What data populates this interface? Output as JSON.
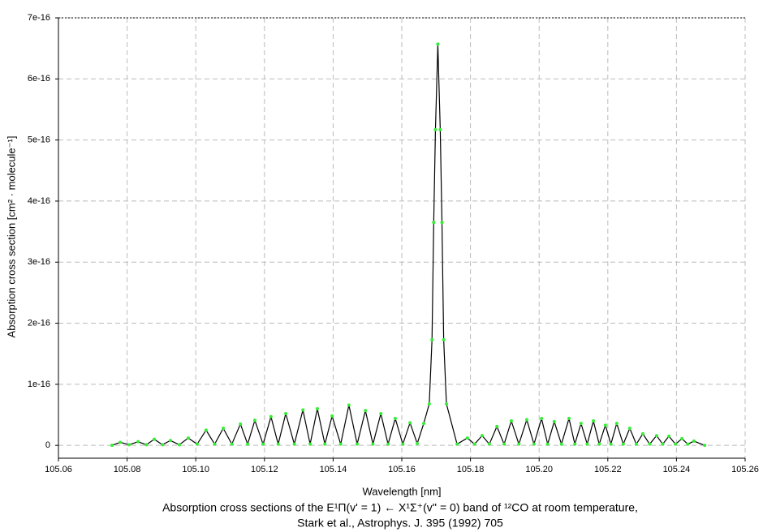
{
  "chart_data": {
    "type": "line",
    "title": "Absorption cross sections of the E¹Π(v' = 1) ← X¹Σ⁺(v'' = 0) band of ¹²CO at room temperature,",
    "subtitle": "Stark et al., Astrophys. J. 395 (1992) 705",
    "x_label": "Wavelength [nm]",
    "y_label": "Absorption cross section [cm² · molecule⁻¹]",
    "xlim": [
      105.06,
      105.26
    ],
    "ylim": [
      -2.1e-17,
      7e-16
    ],
    "xticks": [
      105.06,
      105.08,
      {
        "value": 105.1,
        "label": "105.10"
      },
      105.12,
      105.14,
      105.16,
      105.18,
      {
        "value": 105.2,
        "label": "105.20"
      },
      105.22,
      105.24,
      105.26
    ],
    "yticks": [
      0,
      {
        "value": 1e-16,
        "label": "1e-16"
      },
      {
        "value": 2e-16,
        "label": "2e-16"
      },
      {
        "value": 3e-16,
        "label": "3e-16"
      },
      {
        "value": 4e-16,
        "label": "4e-16"
      },
      {
        "value": 5e-16,
        "label": "5e-16"
      },
      {
        "value": 6e-16,
        "label": "6e-16"
      },
      {
        "value": 7e-16,
        "label": "7e-16"
      }
    ],
    "grid": true,
    "line_color": "#000000",
    "marker_color": "#33ee33",
    "x": [
      105.0756,
      105.078,
      105.0806,
      105.0832,
      105.0856,
      105.0879,
      105.0903,
      105.0926,
      105.0952,
      105.0978,
      105.1004,
      105.103,
      105.1055,
      105.108,
      105.1105,
      105.113,
      105.1151,
      105.1172,
      105.1196,
      105.1219,
      105.124,
      105.1262,
      105.1287,
      105.1312,
      105.1333,
      105.1354,
      105.1376,
      105.1397,
      105.1422,
      105.1446,
      105.147,
      105.1494,
      105.1516,
      105.1539,
      105.156,
      105.1581,
      105.1603,
      105.1624,
      105.1645,
      105.1664,
      105.168,
      105.1688,
      105.1693,
      105.1698,
      105.1705,
      105.1712,
      105.1717,
      105.1722,
      105.173,
      105.1761,
      105.1791,
      105.1812,
      105.1834,
      105.1855,
      105.1877,
      105.1898,
      105.1919,
      105.1941,
      105.1964,
      105.1985,
      105.2007,
      105.2025,
      105.2044,
      105.2065,
      105.2087,
      105.2104,
      105.2122,
      105.214,
      105.2158,
      105.2175,
      105.2193,
      105.2209,
      105.2226,
      105.2245,
      105.2264,
      105.2283,
      105.2302,
      105.2322,
      105.2342,
      105.236,
      105.2378,
      105.2397,
      105.2416,
      105.2433,
      105.2451,
      105.2482
    ],
    "values": [
      0,
      5e-18,
      1e-18,
      6e-18,
      1e-18,
      1e-17,
      1e-18,
      8e-18,
      1e-18,
      1.2e-17,
      2e-18,
      2.5e-17,
      2e-18,
      2.8e-17,
      2e-18,
      3.5e-17,
      2e-18,
      4.1e-17,
      2e-18,
      4.7e-17,
      2e-18,
      5.2e-17,
      2e-18,
      5.8e-17,
      2e-18,
      6e-17,
      2e-18,
      4.8e-17,
      2e-18,
      6.6e-17,
      2e-18,
      5.7e-17,
      2e-18,
      5.2e-17,
      2e-18,
      4.4e-17,
      2e-18,
      3.7e-17,
      3e-18,
      3.6e-17,
      6.8e-17,
      1.73e-16,
      3.65e-16,
      5.17e-16,
      6.57e-16,
      5.17e-16,
      3.65e-16,
      1.73e-16,
      6.8e-17,
      2e-18,
      1.2e-17,
      2e-18,
      1.6e-17,
      2e-18,
      3.1e-17,
      2e-18,
      4e-17,
      2e-18,
      4.2e-17,
      2e-18,
      4.4e-17,
      2e-18,
      3.9e-17,
      2e-18,
      4.4e-17,
      2e-18,
      3.6e-17,
      2e-18,
      4e-17,
      2e-18,
      3.3e-17,
      2e-18,
      3.6e-17,
      2e-18,
      2.8e-17,
      2e-18,
      1.9e-17,
      2e-18,
      1.6e-17,
      2e-18,
      1.5e-17,
      2e-18,
      1.1e-17,
      2e-18,
      7e-18,
      0
    ]
  }
}
